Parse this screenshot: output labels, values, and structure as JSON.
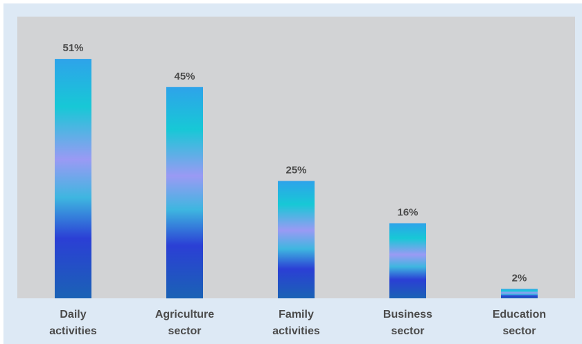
{
  "chart_data": {
    "type": "bar",
    "categories": [
      [
        "Daily",
        "activities"
      ],
      [
        "Agriculture",
        "sector"
      ],
      [
        "Family",
        "activities"
      ],
      [
        "Business",
        "sector"
      ],
      [
        "Education",
        "sector"
      ]
    ],
    "values": [
      51,
      45,
      25,
      16,
      2
    ],
    "value_labels": [
      "51%",
      "45%",
      "25%",
      "16%",
      "2%"
    ],
    "unit": "%",
    "title": "",
    "xlabel": "",
    "ylabel": "",
    "ylim": [
      0,
      60
    ],
    "grid": false,
    "legend": "none"
  },
  "colors": {
    "frame_background": "#dde9f5",
    "plot_background": "#d2d3d5",
    "label_color": "#4b4b4b",
    "bar_gradient_top_to_bottom": [
      "#2ea3ea",
      "#17c8d6",
      "#9a9af4",
      "#3eb6e0",
      "#2b3fd5",
      "#1a62b5"
    ]
  }
}
